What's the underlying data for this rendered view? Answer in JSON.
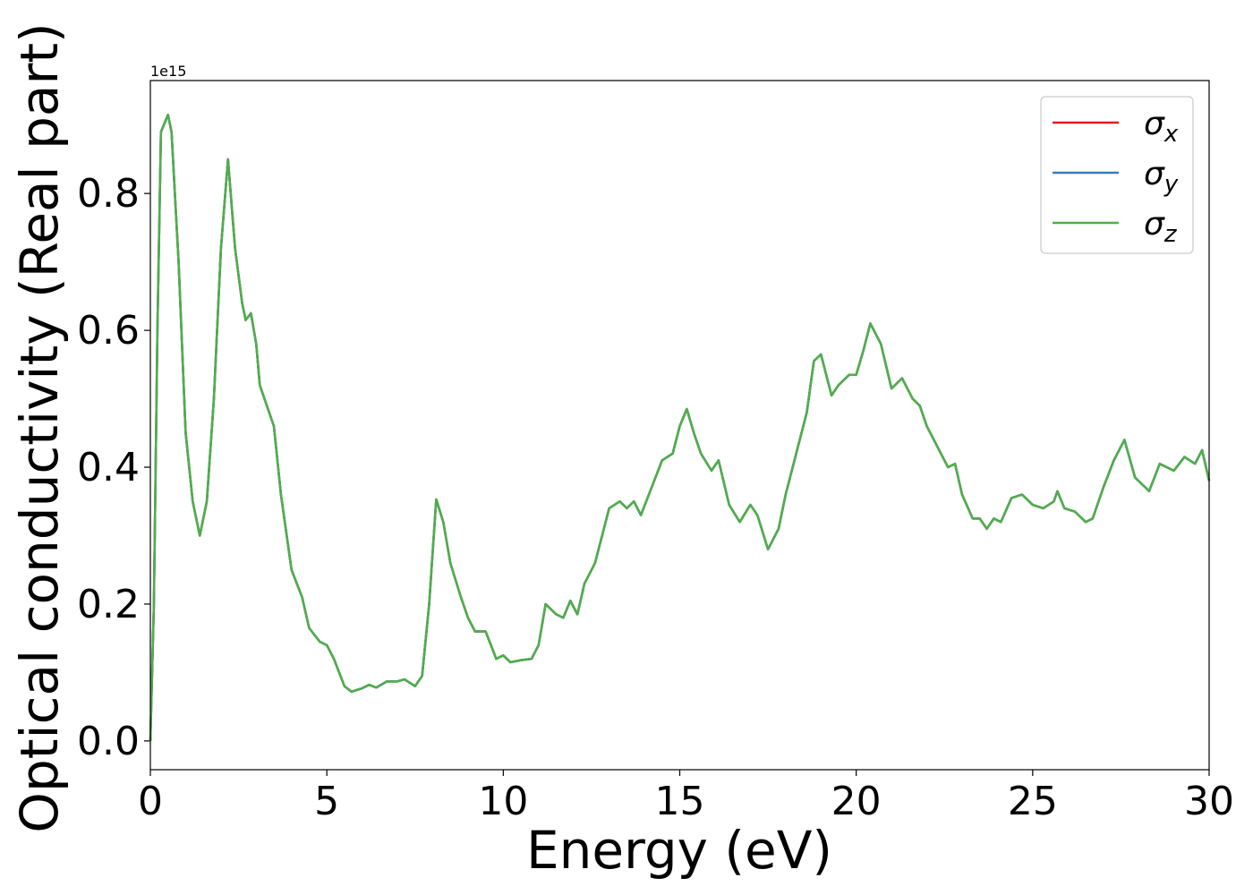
{
  "chart_data": {
    "type": "line",
    "x_label": "Energy (eV)",
    "y_label": "Optical conductivity (Real part)",
    "y_offset_text": "1e15",
    "x": [
      0,
      0.1,
      0.2,
      0.3,
      0.5,
      0.6,
      0.8,
      1.0,
      1.2,
      1.4,
      1.6,
      1.8,
      2.0,
      2.2,
      2.4,
      2.6,
      2.7,
      2.85,
      3.0,
      3.1,
      3.3,
      3.5,
      3.7,
      4.0,
      4.3,
      4.5,
      4.8,
      5.0,
      5.2,
      5.5,
      5.7,
      6.0,
      6.2,
      6.4,
      6.7,
      7.0,
      7.2,
      7.5,
      7.7,
      7.9,
      8.1,
      8.3,
      8.5,
      8.8,
      9.0,
      9.2,
      9.5,
      9.8,
      10.0,
      10.2,
      10.5,
      10.8,
      11.0,
      11.2,
      11.5,
      11.7,
      11.9,
      12.1,
      12.3,
      12.6,
      12.8,
      13.0,
      13.3,
      13.5,
      13.7,
      13.9,
      14.2,
      14.5,
      14.8,
      15.0,
      15.2,
      15.4,
      15.6,
      15.9,
      16.1,
      16.4,
      16.7,
      17.0,
      17.2,
      17.5,
      17.8,
      18.0,
      18.3,
      18.6,
      18.8,
      19.0,
      19.3,
      19.5,
      19.8,
      20.0,
      20.2,
      20.4,
      20.7,
      21.0,
      21.3,
      21.6,
      21.8,
      22.0,
      22.3,
      22.6,
      22.8,
      23.0,
      23.3,
      23.5,
      23.7,
      23.9,
      24.1,
      24.4,
      24.7,
      25.0,
      25.3,
      25.6,
      25.7,
      25.9,
      26.2,
      26.5,
      26.7,
      27.0,
      27.3,
      27.6,
      27.9,
      28.3,
      28.6,
      29.0,
      29.3,
      29.6,
      29.8,
      30.0
    ],
    "series": [
      {
        "name": "σx",
        "color": "#e41a1c",
        "values": [
          0,
          0.2,
          0.6,
          0.89,
          0.915,
          0.89,
          0.7,
          0.45,
          0.35,
          0.3,
          0.35,
          0.5,
          0.72,
          0.85,
          0.72,
          0.64,
          0.615,
          0.625,
          0.58,
          0.52,
          0.49,
          0.46,
          0.36,
          0.25,
          0.21,
          0.165,
          0.145,
          0.14,
          0.12,
          0.08,
          0.072,
          0.077,
          0.082,
          0.078,
          0.087,
          0.087,
          0.09,
          0.08,
          0.095,
          0.2,
          0.353,
          0.32,
          0.26,
          0.21,
          0.18,
          0.16,
          0.16,
          0.12,
          0.125,
          0.115,
          0.118,
          0.12,
          0.14,
          0.2,
          0.185,
          0.18,
          0.205,
          0.185,
          0.23,
          0.26,
          0.3,
          0.34,
          0.35,
          0.34,
          0.35,
          0.33,
          0.37,
          0.41,
          0.42,
          0.46,
          0.485,
          0.45,
          0.42,
          0.395,
          0.41,
          0.345,
          0.32,
          0.345,
          0.33,
          0.28,
          0.31,
          0.36,
          0.42,
          0.48,
          0.555,
          0.565,
          0.505,
          0.52,
          0.535,
          0.535,
          0.57,
          0.61,
          0.58,
          0.515,
          0.53,
          0.5,
          0.49,
          0.46,
          0.43,
          0.4,
          0.405,
          0.36,
          0.325,
          0.325,
          0.31,
          0.325,
          0.32,
          0.355,
          0.36,
          0.345,
          0.34,
          0.35,
          0.365,
          0.34,
          0.335,
          0.32,
          0.325,
          0.37,
          0.41,
          0.44,
          0.385,
          0.365,
          0.405,
          0.395,
          0.415,
          0.405,
          0.425,
          0.38
        ]
      },
      {
        "name": "σy",
        "color": "#377eb8",
        "values": [
          0,
          0.2,
          0.6,
          0.89,
          0.915,
          0.89,
          0.7,
          0.45,
          0.35,
          0.3,
          0.35,
          0.5,
          0.72,
          0.85,
          0.72,
          0.64,
          0.615,
          0.625,
          0.58,
          0.52,
          0.49,
          0.46,
          0.36,
          0.25,
          0.21,
          0.165,
          0.145,
          0.14,
          0.12,
          0.08,
          0.072,
          0.077,
          0.082,
          0.078,
          0.087,
          0.087,
          0.09,
          0.08,
          0.095,
          0.2,
          0.353,
          0.32,
          0.26,
          0.21,
          0.18,
          0.16,
          0.16,
          0.12,
          0.125,
          0.115,
          0.118,
          0.12,
          0.14,
          0.2,
          0.185,
          0.18,
          0.205,
          0.185,
          0.23,
          0.26,
          0.3,
          0.34,
          0.35,
          0.34,
          0.35,
          0.33,
          0.37,
          0.41,
          0.42,
          0.46,
          0.485,
          0.45,
          0.42,
          0.395,
          0.41,
          0.345,
          0.32,
          0.345,
          0.33,
          0.28,
          0.31,
          0.36,
          0.42,
          0.48,
          0.555,
          0.565,
          0.505,
          0.52,
          0.535,
          0.535,
          0.57,
          0.61,
          0.58,
          0.515,
          0.53,
          0.5,
          0.49,
          0.46,
          0.43,
          0.4,
          0.405,
          0.36,
          0.325,
          0.325,
          0.31,
          0.325,
          0.32,
          0.355,
          0.36,
          0.345,
          0.34,
          0.35,
          0.365,
          0.34,
          0.335,
          0.32,
          0.325,
          0.37,
          0.41,
          0.44,
          0.385,
          0.365,
          0.405,
          0.395,
          0.415,
          0.405,
          0.425,
          0.38
        ]
      },
      {
        "name": "σz",
        "color": "#4daf4a",
        "values": [
          0,
          0.2,
          0.6,
          0.89,
          0.915,
          0.89,
          0.7,
          0.45,
          0.35,
          0.3,
          0.35,
          0.5,
          0.72,
          0.85,
          0.72,
          0.64,
          0.615,
          0.625,
          0.58,
          0.52,
          0.49,
          0.46,
          0.36,
          0.25,
          0.21,
          0.165,
          0.145,
          0.14,
          0.12,
          0.08,
          0.072,
          0.077,
          0.082,
          0.078,
          0.087,
          0.087,
          0.09,
          0.08,
          0.095,
          0.2,
          0.353,
          0.32,
          0.26,
          0.21,
          0.18,
          0.16,
          0.16,
          0.12,
          0.125,
          0.115,
          0.118,
          0.12,
          0.14,
          0.2,
          0.185,
          0.18,
          0.205,
          0.185,
          0.23,
          0.26,
          0.3,
          0.34,
          0.35,
          0.34,
          0.35,
          0.33,
          0.37,
          0.41,
          0.42,
          0.46,
          0.485,
          0.45,
          0.42,
          0.395,
          0.41,
          0.345,
          0.32,
          0.345,
          0.33,
          0.28,
          0.31,
          0.36,
          0.42,
          0.48,
          0.555,
          0.565,
          0.505,
          0.52,
          0.535,
          0.535,
          0.57,
          0.61,
          0.58,
          0.515,
          0.53,
          0.5,
          0.49,
          0.46,
          0.43,
          0.4,
          0.405,
          0.36,
          0.325,
          0.325,
          0.31,
          0.325,
          0.32,
          0.355,
          0.36,
          0.345,
          0.34,
          0.35,
          0.365,
          0.34,
          0.335,
          0.32,
          0.325,
          0.37,
          0.41,
          0.44,
          0.385,
          0.365,
          0.405,
          0.395,
          0.415,
          0.405,
          0.425,
          0.38
        ]
      }
    ],
    "xlim": [
      0,
      30
    ],
    "xticks": [
      0,
      5,
      10,
      15,
      20,
      25,
      30
    ],
    "ylim": [
      -0.042,
      0.965
    ],
    "yticks": [
      {
        "value": 0,
        "label": "0.0"
      },
      0.2,
      0.4,
      0.6,
      0.8
    ],
    "grid": false,
    "legend": "upper right"
  }
}
